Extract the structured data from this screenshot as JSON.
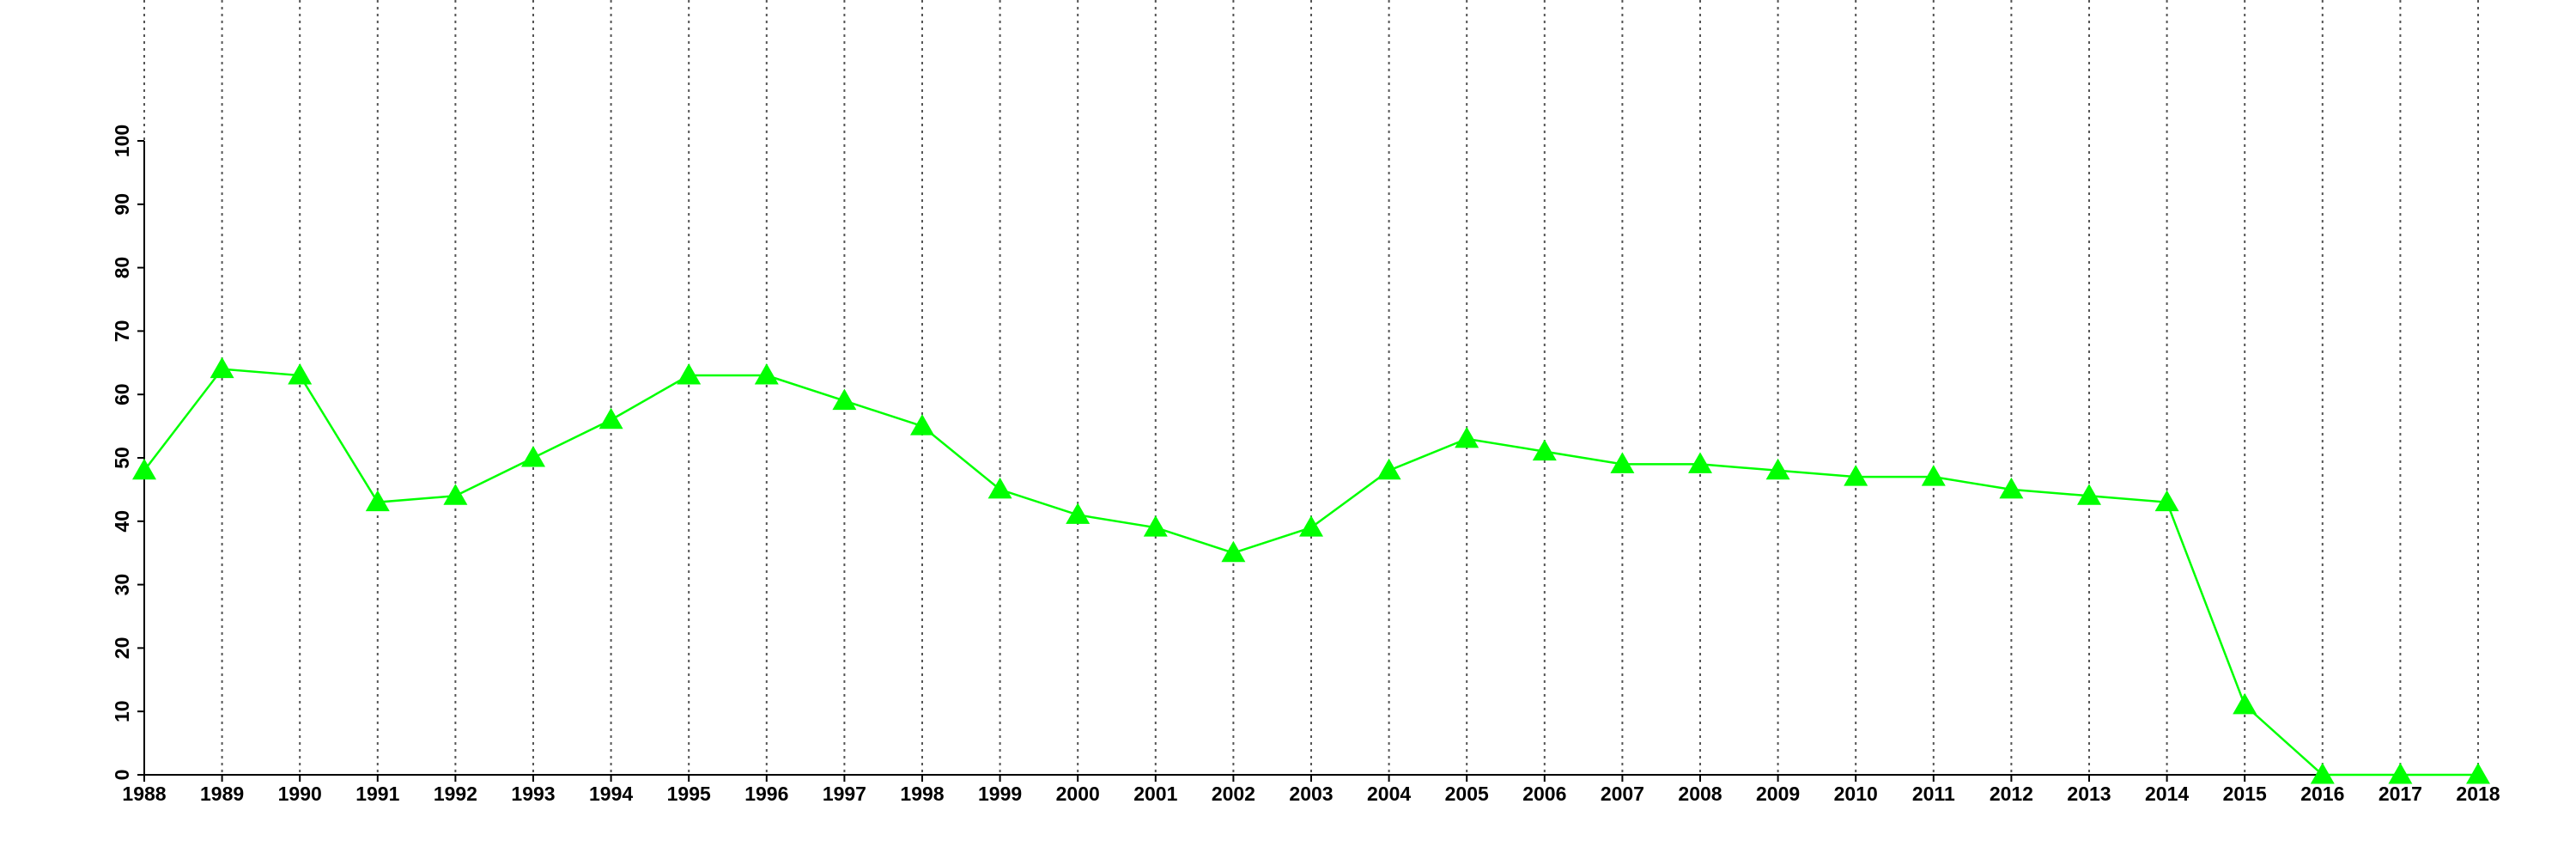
{
  "chart_data": {
    "type": "line",
    "x": [
      1988,
      1989,
      1990,
      1991,
      1992,
      1993,
      1994,
      1995,
      1996,
      1997,
      1998,
      1999,
      2000,
      2001,
      2002,
      2003,
      2004,
      2005,
      2006,
      2007,
      2008,
      2009,
      2010,
      2011,
      2012,
      2013,
      2014,
      2015,
      2016,
      2017,
      2018
    ],
    "series": [
      {
        "color": "#00ff00",
        "marker": "triangle",
        "values": [
          48,
          64,
          63,
          43,
          44,
          50,
          56,
          63,
          63,
          59,
          55,
          45,
          41,
          39,
          35,
          39,
          48,
          53,
          51,
          49,
          49,
          48,
          47,
          47,
          45,
          44,
          43,
          11,
          0,
          0,
          0
        ]
      }
    ],
    "xlim": [
      1988,
      2018
    ],
    "xticks": [
      1988,
      1989,
      1990,
      1991,
      1992,
      1993,
      1994,
      1995,
      1996,
      1997,
      1998,
      1999,
      2000,
      2001,
      2002,
      2003,
      2004,
      2005,
      2006,
      2007,
      2008,
      2009,
      2010,
      2011,
      2012,
      2013,
      2014,
      2015,
      2016,
      2017,
      2018
    ],
    "ylim": [
      0,
      100
    ],
    "yticks": [
      0,
      10,
      20,
      30,
      40,
      50,
      60,
      70,
      80,
      90,
      100
    ],
    "grid": "x"
  }
}
